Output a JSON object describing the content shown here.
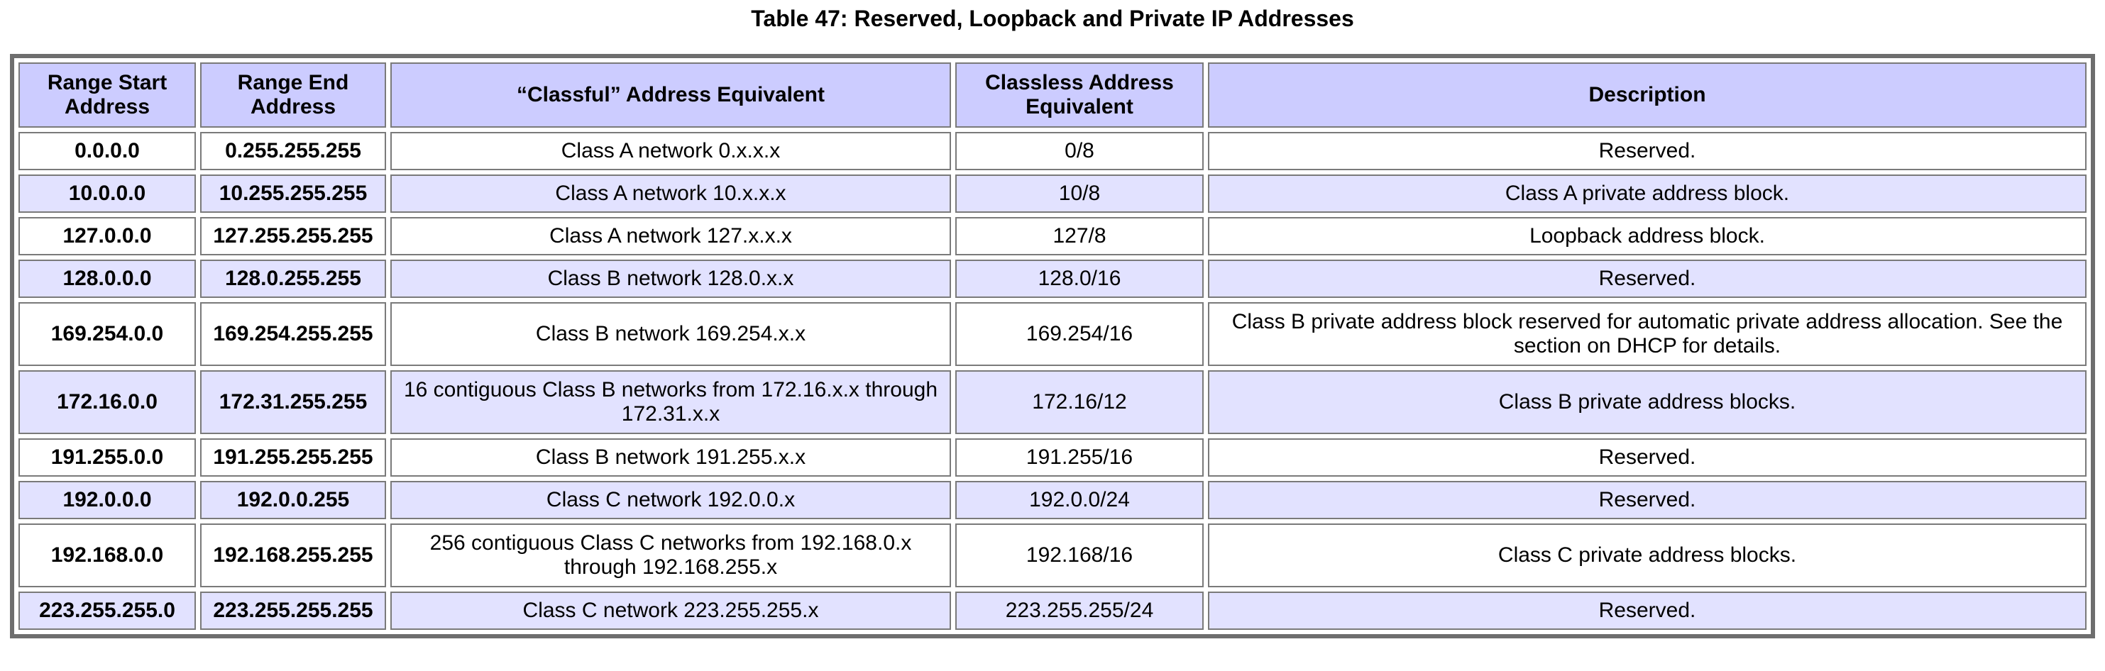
{
  "caption": "Table 47: Reserved, Loopback and Private IP Addresses",
  "colors": {
    "header_bg": "#ccccff",
    "row_alt_bg": "#e2e2ff",
    "row_bg": "#ffffff",
    "border": "#7a7a7a"
  },
  "table": {
    "headers": {
      "range_start": "Range Start Address",
      "range_end": "Range End Address",
      "classful": "“Classful” Address Equivalent",
      "classless": "Classless Address Equivalent",
      "description": "Description"
    },
    "rows": [
      {
        "start": "0.0.0.0",
        "end": "0.255.255.255",
        "classful": "Class A network 0.x.x.x",
        "classless": "0/8",
        "description": "Reserved."
      },
      {
        "start": "10.0.0.0",
        "end": "10.255.255.255",
        "classful": "Class A network 10.x.x.x",
        "classless": "10/8",
        "description": "Class A private address block."
      },
      {
        "start": "127.0.0.0",
        "end": "127.255.255.255",
        "classful": "Class A network 127.x.x.x",
        "classless": "127/8",
        "description": "Loopback address block."
      },
      {
        "start": "128.0.0.0",
        "end": "128.0.255.255",
        "classful": "Class B network 128.0.x.x",
        "classless": "128.0/16",
        "description": "Reserved."
      },
      {
        "start": "169.254.0.0",
        "end": "169.254.255.255",
        "classful": "Class B network 169.254.x.x",
        "classless": "169.254/16",
        "description": "Class B private address block reserved for automatic private address allocation. See the section on DHCP for details."
      },
      {
        "start": "172.16.0.0",
        "end": "172.31.255.255",
        "classful": "16 contiguous Class B networks from 172.16.x.x through 172.31.x.x",
        "classless": "172.16/12",
        "description": "Class B private address blocks."
      },
      {
        "start": "191.255.0.0",
        "end": "191.255.255.255",
        "classful": "Class B network 191.255.x.x",
        "classless": "191.255/16",
        "description": "Reserved."
      },
      {
        "start": "192.0.0.0",
        "end": "192.0.0.255",
        "classful": "Class C network 192.0.0.x",
        "classless": "192.0.0/24",
        "description": "Reserved."
      },
      {
        "start": "192.168.0.0",
        "end": "192.168.255.255",
        "classful": "256 contiguous Class C networks from 192.168.0.x through 192.168.255.x",
        "classless": "192.168/16",
        "description": "Class C private address blocks."
      },
      {
        "start": "223.255.255.0",
        "end": "223.255.255.255",
        "classful": "Class C network 223.255.255.x",
        "classless": "223.255.255/24",
        "description": "Reserved."
      }
    ]
  }
}
